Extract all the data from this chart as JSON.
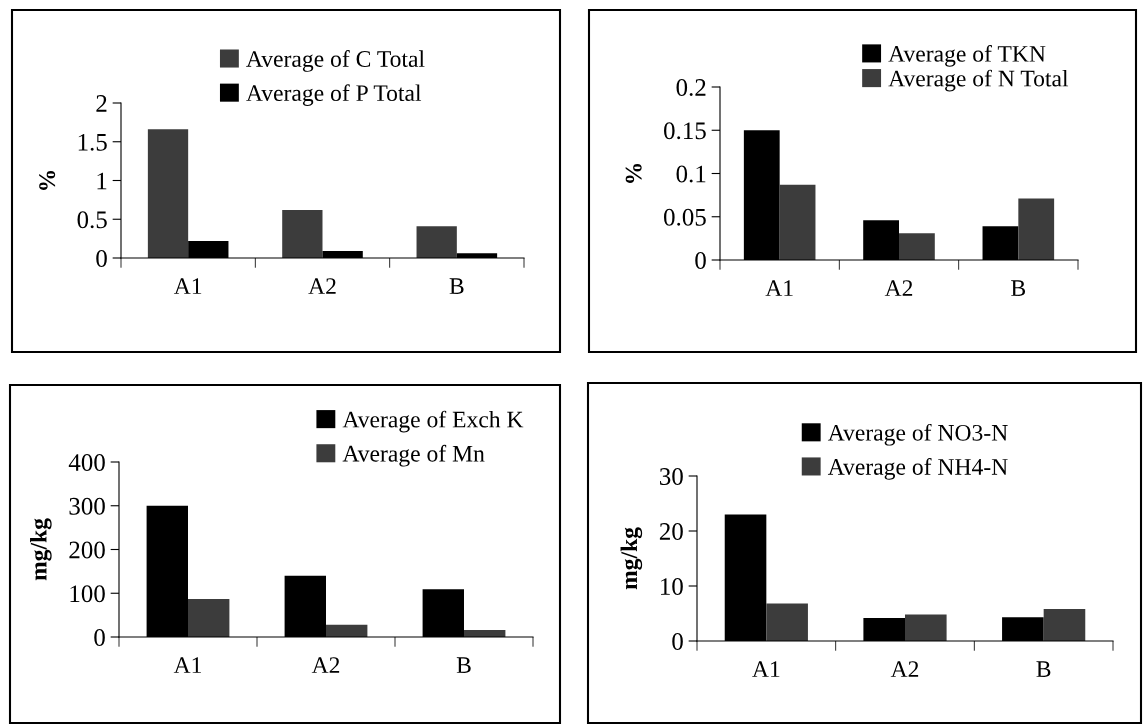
{
  "chart_data": [
    {
      "type": "bar",
      "categories": [
        "A1",
        "A2",
        "B"
      ],
      "ylabel": "%",
      "ylim": [
        0,
        2
      ],
      "yticks": [
        0,
        {
          "value": 0.5,
          "label": "0.5"
        },
        1,
        {
          "value": 1.5,
          "label": "1.5"
        },
        2
      ],
      "legend": "top",
      "grid": false,
      "series": [
        {
          "name": "Average of C Total",
          "color": "#3c3c3c",
          "values": [
            1.66,
            0.62,
            0.41
          ]
        },
        {
          "name": "Average of P Total",
          "color": "#000000",
          "values": [
            0.22,
            0.09,
            0.06
          ]
        }
      ]
    },
    {
      "type": "bar",
      "categories": [
        "A1",
        "A2",
        "B"
      ],
      "ylabel": "%",
      "ylim": [
        0,
        0.2
      ],
      "yticks": [
        0,
        {
          "value": 0.05,
          "label": "0.05"
        },
        {
          "value": 0.1,
          "label": "0.1"
        },
        {
          "value": 0.15,
          "label": "0.15"
        },
        {
          "value": 0.2,
          "label": "0.2"
        }
      ],
      "legend": "top right",
      "grid": false,
      "series": [
        {
          "name": "Average of TKN",
          "color": "#000000",
          "values": [
            0.15,
            0.046,
            0.039
          ]
        },
        {
          "name": "Average of N Total",
          "color": "#3c3c3c",
          "values": [
            0.087,
            0.031,
            0.071
          ]
        }
      ]
    },
    {
      "type": "bar",
      "categories": [
        "A1",
        "A2",
        "B"
      ],
      "ylabel": "mg/kg",
      "ylim": [
        0,
        400
      ],
      "yticks": [
        0,
        100,
        200,
        300,
        400
      ],
      "legend": "top right",
      "grid": false,
      "series": [
        {
          "name": "Average of Exch K",
          "color": "#000000",
          "values": [
            300,
            140,
            109
          ]
        },
        {
          "name": "Average of Mn",
          "color": "#3c3c3c",
          "values": [
            87,
            28,
            16
          ]
        }
      ]
    },
    {
      "type": "bar",
      "categories": [
        "A1",
        "A2",
        "B"
      ],
      "ylabel": "mg/kg",
      "ylim": [
        0,
        30
      ],
      "yticks": [
        0,
        10,
        20,
        30
      ],
      "legend": "top",
      "grid": false,
      "series": [
        {
          "name": "Average of NO3-N",
          "color": "#000000",
          "values": [
            23,
            4.2,
            4.3
          ]
        },
        {
          "name": "Average of NH4-N",
          "color": "#3c3c3c",
          "values": [
            6.8,
            4.8,
            5.8
          ]
        }
      ]
    }
  ]
}
